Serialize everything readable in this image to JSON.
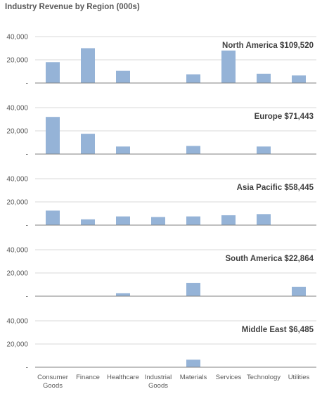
{
  "title": "Industry Revenue by Region (000s)",
  "chart_data": {
    "type": "bar",
    "layout": "small-multiples",
    "title": "Industry Revenue by Region (000s)",
    "categories": [
      "Consumer Goods",
      "Finance",
      "Healthcare",
      "Industrial Goods",
      "Materials",
      "Services",
      "Technology",
      "Utilities"
    ],
    "category_labels": [
      [
        "Consumer",
        "Goods"
      ],
      [
        "Finance"
      ],
      [
        "Healthcare"
      ],
      [
        "Industrial",
        "Goods"
      ],
      [
        "Materials"
      ],
      [
        "Services"
      ],
      [
        "Technology"
      ],
      [
        "Utilities"
      ]
    ],
    "ylim": [
      0,
      40000
    ],
    "yticks": [
      {
        "value": 0,
        "label": "-"
      },
      {
        "value": 20000,
        "label": "20,000"
      },
      {
        "value": 40000,
        "label": "40,000"
      }
    ],
    "grid": true,
    "bar_color": "#95b3d7",
    "series": [
      {
        "name": "North America",
        "total_label": "North America $109,520",
        "values": [
          18000,
          30000,
          10500,
          0,
          7500,
          28000,
          8000,
          6500
        ]
      },
      {
        "name": "Europe",
        "total_label": "Europe $71,443",
        "values": [
          32000,
          17500,
          6500,
          0,
          7000,
          0,
          6500,
          0
        ]
      },
      {
        "name": "Asia Pacific",
        "total_label": "Asia Pacific $58,445",
        "values": [
          12500,
          5000,
          7500,
          7000,
          7500,
          8500,
          9500,
          0
        ]
      },
      {
        "name": "South America",
        "total_label": "South America $22,864",
        "values": [
          0,
          0,
          2500,
          0,
          11500,
          0,
          0,
          8000
        ]
      },
      {
        "name": "Middle East",
        "total_label": "Middle East $6,485",
        "values": [
          0,
          0,
          0,
          0,
          6500,
          0,
          0,
          0
        ]
      }
    ]
  }
}
